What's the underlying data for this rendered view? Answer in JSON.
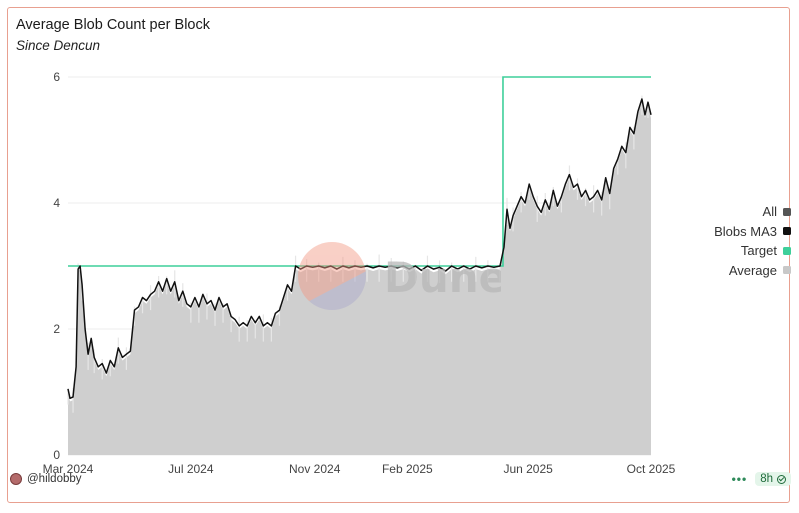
{
  "title": "Average Blob Count per Block",
  "subtitle": "Since Dencun",
  "watermark_text": "Dune",
  "footer": {
    "user": "@hildobby",
    "refresh": "8h"
  },
  "legend": [
    {
      "label": "All",
      "color": "#555555"
    },
    {
      "label": "Blobs MA3",
      "color": "#111111"
    },
    {
      "label": "Target",
      "color": "#3ecf9a"
    },
    {
      "label": "Average",
      "color": "#c8c8c8"
    }
  ],
  "chart_data": {
    "type": "area",
    "title": "Average Blob Count per Block",
    "subtitle": "Since Dencun",
    "xlabel": "",
    "ylabel": "",
    "ylim": [
      0,
      6
    ],
    "y_ticks": [
      "0",
      "2",
      "4",
      "6"
    ],
    "x_ticks": [
      "Mar 2024",
      "Jul 2024",
      "Nov 2024",
      "Feb 2025",
      "Jun 2025",
      "Oct 2025"
    ],
    "x_tick_dates": [
      "2024-03-01",
      "2024-07-01",
      "2024-11-01",
      "2025-02-01",
      "2025-06-01",
      "2025-10-01"
    ],
    "x_range": [
      "2024-03-01",
      "2025-10-01"
    ],
    "grid": true,
    "legend_position": "right",
    "target": [
      {
        "from": "2024-03-01",
        "to": "2025-05-07",
        "value": 3
      },
      {
        "from": "2025-05-07",
        "to": "2025-10-01",
        "value": 6
      }
    ],
    "series": [
      {
        "name": "Blobs MA3",
        "points": [
          [
            "2024-03-01",
            1.05
          ],
          [
            "2024-03-03",
            0.9
          ],
          [
            "2024-03-06",
            0.92
          ],
          [
            "2024-03-09",
            1.4
          ],
          [
            "2024-03-11",
            2.95
          ],
          [
            "2024-03-13",
            3.0
          ],
          [
            "2024-03-15",
            2.7
          ],
          [
            "2024-03-18",
            2.0
          ],
          [
            "2024-03-21",
            1.6
          ],
          [
            "2024-03-24",
            1.85
          ],
          [
            "2024-03-27",
            1.55
          ],
          [
            "2024-03-31",
            1.4
          ],
          [
            "2024-04-04",
            1.45
          ],
          [
            "2024-04-08",
            1.3
          ],
          [
            "2024-04-12",
            1.5
          ],
          [
            "2024-04-16",
            1.4
          ],
          [
            "2024-04-20",
            1.7
          ],
          [
            "2024-04-24",
            1.55
          ],
          [
            "2024-04-28",
            1.6
          ],
          [
            "2024-05-02",
            1.65
          ],
          [
            "2024-05-06",
            2.3
          ],
          [
            "2024-05-10",
            2.35
          ],
          [
            "2024-05-14",
            2.5
          ],
          [
            "2024-05-18",
            2.45
          ],
          [
            "2024-05-22",
            2.55
          ],
          [
            "2024-05-26",
            2.6
          ],
          [
            "2024-05-30",
            2.75
          ],
          [
            "2024-06-03",
            2.6
          ],
          [
            "2024-06-07",
            2.8
          ],
          [
            "2024-06-11",
            2.6
          ],
          [
            "2024-06-15",
            2.75
          ],
          [
            "2024-06-19",
            2.45
          ],
          [
            "2024-06-23",
            2.6
          ],
          [
            "2024-06-27",
            2.4
          ],
          [
            "2024-07-01",
            2.35
          ],
          [
            "2024-07-05",
            2.5
          ],
          [
            "2024-07-09",
            2.35
          ],
          [
            "2024-07-13",
            2.55
          ],
          [
            "2024-07-17",
            2.4
          ],
          [
            "2024-07-21",
            2.45
          ],
          [
            "2024-07-25",
            2.3
          ],
          [
            "2024-07-29",
            2.5
          ],
          [
            "2024-08-02",
            2.35
          ],
          [
            "2024-08-06",
            2.4
          ],
          [
            "2024-08-10",
            2.2
          ],
          [
            "2024-08-14",
            2.15
          ],
          [
            "2024-08-18",
            2.05
          ],
          [
            "2024-08-22",
            2.1
          ],
          [
            "2024-08-26",
            2.05
          ],
          [
            "2024-08-30",
            2.2
          ],
          [
            "2024-09-03",
            2.1
          ],
          [
            "2024-09-07",
            2.2
          ],
          [
            "2024-09-11",
            2.05
          ],
          [
            "2024-09-15",
            2.1
          ],
          [
            "2024-09-19",
            2.05
          ],
          [
            "2024-09-23",
            2.25
          ],
          [
            "2024-09-27",
            2.3
          ],
          [
            "2024-10-01",
            2.5
          ],
          [
            "2024-10-05",
            2.7
          ],
          [
            "2024-10-09",
            2.6
          ],
          [
            "2024-10-13",
            3.0
          ],
          [
            "2024-10-18",
            2.95
          ],
          [
            "2024-10-24",
            3.0
          ],
          [
            "2024-10-30",
            2.98
          ],
          [
            "2024-11-05",
            3.0
          ],
          [
            "2024-11-11",
            2.97
          ],
          [
            "2024-11-17",
            3.0
          ],
          [
            "2024-11-23",
            2.95
          ],
          [
            "2024-11-29",
            3.0
          ],
          [
            "2024-12-05",
            2.97
          ],
          [
            "2024-12-11",
            3.0
          ],
          [
            "2024-12-17",
            2.98
          ],
          [
            "2024-12-23",
            3.0
          ],
          [
            "2024-12-29",
            2.97
          ],
          [
            "2025-01-04",
            3.0
          ],
          [
            "2025-01-10",
            2.98
          ],
          [
            "2025-01-16",
            3.0
          ],
          [
            "2025-01-22",
            2.97
          ],
          [
            "2025-01-28",
            3.0
          ],
          [
            "2025-02-03",
            2.95
          ],
          [
            "2025-02-09",
            3.0
          ],
          [
            "2025-02-15",
            2.93
          ],
          [
            "2025-02-21",
            3.0
          ],
          [
            "2025-02-27",
            2.95
          ],
          [
            "2025-03-05",
            2.98
          ],
          [
            "2025-03-11",
            2.92
          ],
          [
            "2025-03-17",
            3.0
          ],
          [
            "2025-03-23",
            2.95
          ],
          [
            "2025-03-29",
            3.0
          ],
          [
            "2025-04-04",
            2.95
          ],
          [
            "2025-04-10",
            3.0
          ],
          [
            "2025-04-16",
            2.97
          ],
          [
            "2025-04-22",
            3.0
          ],
          [
            "2025-04-28",
            2.98
          ],
          [
            "2025-05-04",
            3.0
          ],
          [
            "2025-05-08",
            3.3
          ],
          [
            "2025-05-11",
            3.9
          ],
          [
            "2025-05-14",
            3.6
          ],
          [
            "2025-05-17",
            3.8
          ],
          [
            "2025-05-21",
            3.95
          ],
          [
            "2025-05-25",
            4.1
          ],
          [
            "2025-05-29",
            4.0
          ],
          [
            "2025-06-02",
            4.3
          ],
          [
            "2025-06-06",
            4.1
          ],
          [
            "2025-06-10",
            3.95
          ],
          [
            "2025-06-14",
            3.85
          ],
          [
            "2025-06-18",
            4.05
          ],
          [
            "2025-06-22",
            3.9
          ],
          [
            "2025-06-26",
            4.2
          ],
          [
            "2025-06-30",
            3.95
          ],
          [
            "2025-07-04",
            4.1
          ],
          [
            "2025-07-08",
            4.3
          ],
          [
            "2025-07-12",
            4.45
          ],
          [
            "2025-07-16",
            4.25
          ],
          [
            "2025-07-20",
            4.3
          ],
          [
            "2025-07-24",
            4.1
          ],
          [
            "2025-07-28",
            4.2
          ],
          [
            "2025-08-01",
            4.05
          ],
          [
            "2025-08-05",
            4.1
          ],
          [
            "2025-08-09",
            4.2
          ],
          [
            "2025-08-13",
            4.05
          ],
          [
            "2025-08-17",
            4.4
          ],
          [
            "2025-08-21",
            4.15
          ],
          [
            "2025-08-25",
            4.55
          ],
          [
            "2025-08-29",
            4.7
          ],
          [
            "2025-09-02",
            4.9
          ],
          [
            "2025-09-06",
            4.8
          ],
          [
            "2025-09-10",
            5.2
          ],
          [
            "2025-09-14",
            5.1
          ],
          [
            "2025-09-18",
            5.45
          ],
          [
            "2025-09-22",
            5.65
          ],
          [
            "2025-09-25",
            5.4
          ],
          [
            "2025-09-28",
            5.6
          ],
          [
            "2025-10-01",
            5.4
          ]
        ]
      }
    ]
  }
}
